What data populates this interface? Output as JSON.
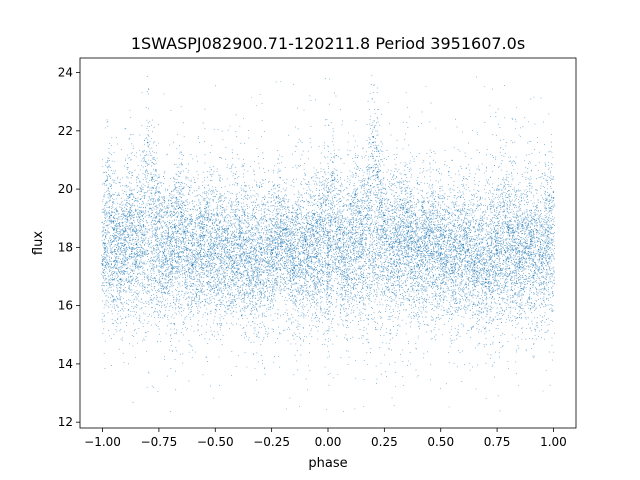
{
  "chart_data": {
    "type": "scatter",
    "title": "1SWASPJ082900.71-120211.8 Period 3951607.0s",
    "xlabel": "phase",
    "ylabel": "flux",
    "xlim": [
      -1.1,
      1.1
    ],
    "ylim": [
      11.8,
      24.5
    ],
    "xticks": [
      -1.0,
      -0.75,
      -0.5,
      -0.25,
      0.0,
      0.25,
      0.5,
      0.75,
      1.0
    ],
    "xtick_labels": [
      "−1.00",
      "−0.75",
      "−0.50",
      "−0.25",
      "0.00",
      "0.25",
      "0.50",
      "0.75",
      "1.00"
    ],
    "yticks": [
      12,
      14,
      16,
      18,
      20,
      22,
      24
    ],
    "ytick_labels": [
      "12",
      "14",
      "16",
      "18",
      "20",
      "22",
      "24"
    ],
    "grid": false,
    "series": [
      {
        "color": "#1f77b4",
        "note_points": "phase-folded light curve, dense band spanning roughly 16-20 flux with scattered outliers from about 12.3 to 23.9",
        "points": [
          [
            -1.0,
            17.4
          ],
          [
            -0.98,
            20.3
          ],
          [
            -0.95,
            18.6
          ],
          [
            -0.92,
            16.9
          ],
          [
            -0.88,
            19.8
          ],
          [
            -0.85,
            18.1
          ],
          [
            -0.8,
            21.6
          ],
          [
            -0.78,
            20.4
          ],
          [
            -0.75,
            18.9
          ],
          [
            -0.72,
            17.6
          ],
          [
            -0.68,
            18.7
          ],
          [
            -0.65,
            19.2
          ],
          [
            -0.6,
            17.4
          ],
          [
            -0.55,
            18.4
          ],
          [
            -0.5,
            17.8
          ],
          [
            -0.45,
            17.3
          ],
          [
            -0.4,
            18.1
          ],
          [
            -0.35,
            17.5
          ],
          [
            -0.3,
            16.8
          ],
          [
            -0.25,
            17.9
          ],
          [
            -0.2,
            18.6
          ],
          [
            -0.15,
            17.3
          ],
          [
            -0.1,
            18.2
          ],
          [
            -0.05,
            17.7
          ],
          [
            0.0,
            19.9
          ],
          [
            0.05,
            18.3
          ],
          [
            0.1,
            19.5
          ],
          [
            0.15,
            18.8
          ],
          [
            0.2,
            21.8
          ],
          [
            0.22,
            20.6
          ],
          [
            0.25,
            19.1
          ],
          [
            0.3,
            18.2
          ],
          [
            0.35,
            18.7
          ],
          [
            0.4,
            17.9
          ],
          [
            0.45,
            18.4
          ],
          [
            0.5,
            17.6
          ],
          [
            0.55,
            17.2
          ],
          [
            0.6,
            18.0
          ],
          [
            0.65,
            17.4
          ],
          [
            0.7,
            16.9
          ],
          [
            0.75,
            17.8
          ],
          [
            0.8,
            18.7
          ],
          [
            0.85,
            17.5
          ],
          [
            0.9,
            18.1
          ],
          [
            0.95,
            17.6
          ],
          [
            1.0,
            19.7
          ]
        ]
      }
    ]
  }
}
